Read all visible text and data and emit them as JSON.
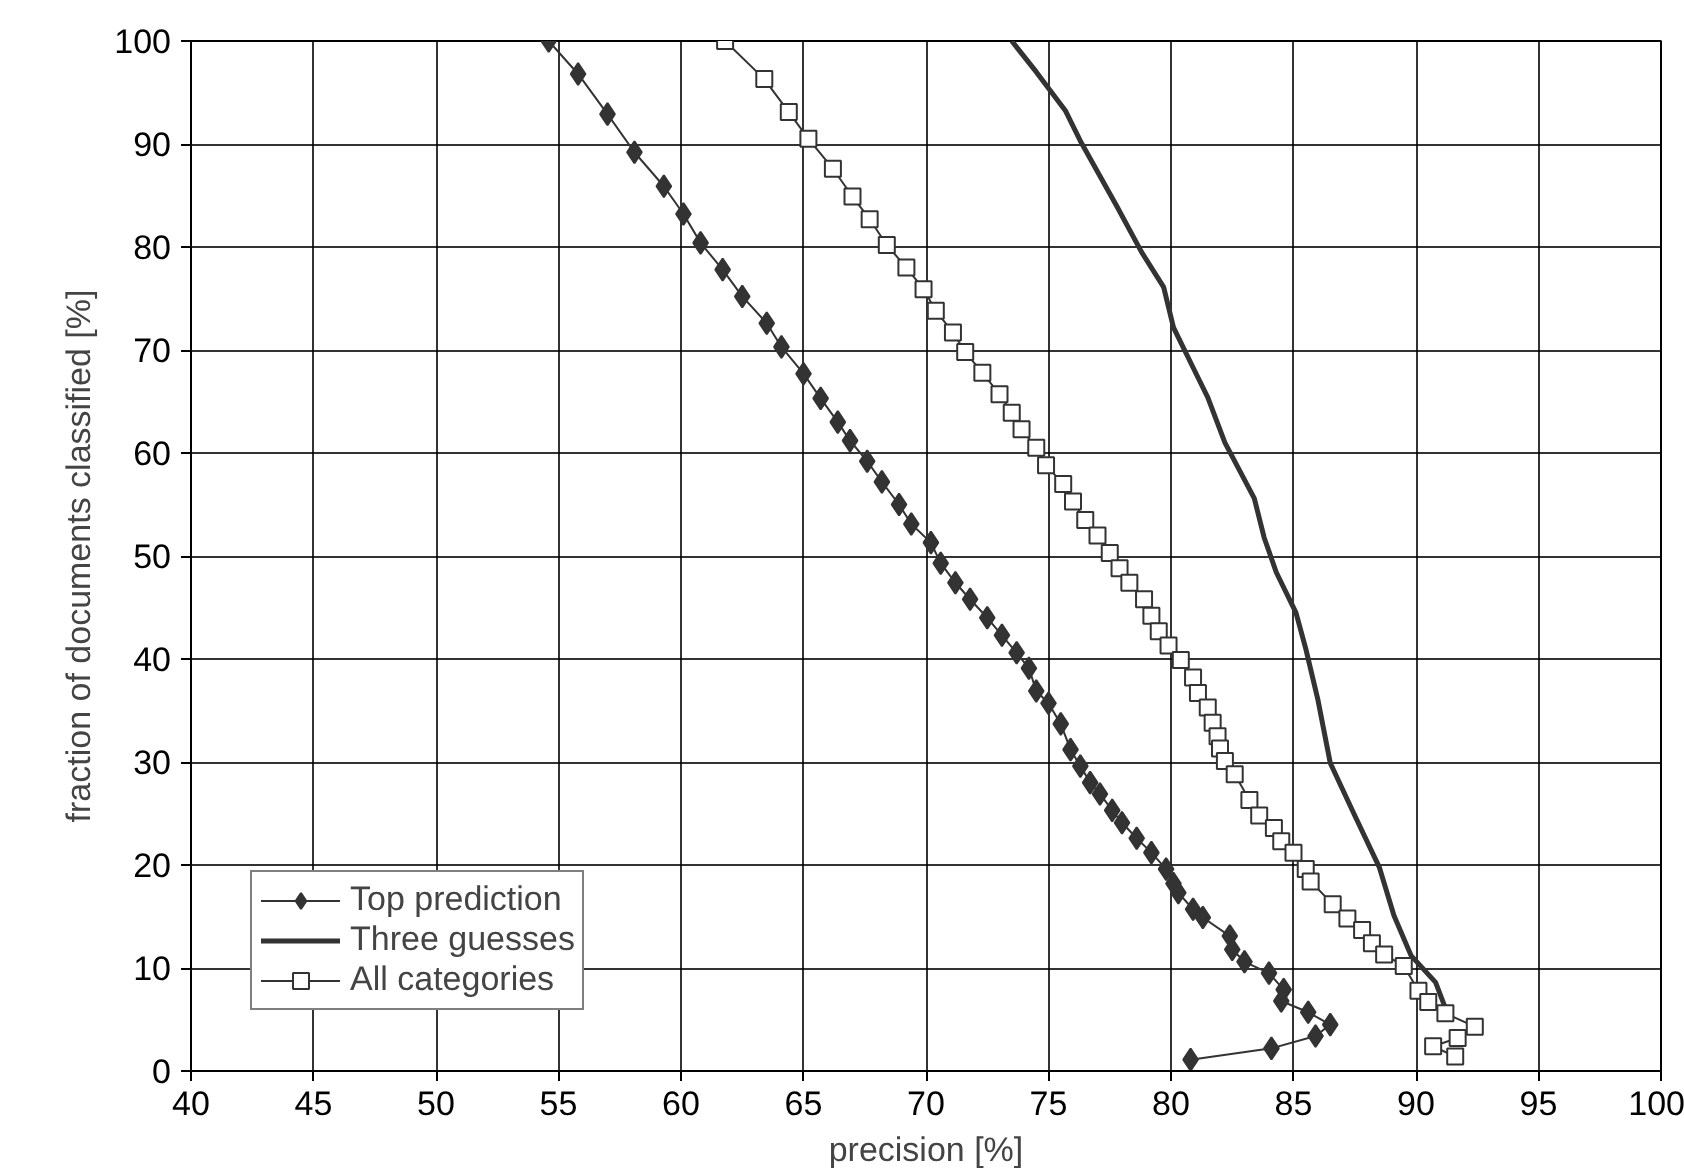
{
  "chart_data": {
    "type": "line",
    "xlabel": "precision [%]",
    "ylabel": "fraction of documents classified [%]",
    "xlim": [
      40,
      100
    ],
    "ylim": [
      0,
      100
    ],
    "xticks": [
      40,
      45,
      50,
      55,
      60,
      65,
      70,
      75,
      80,
      85,
      90,
      95,
      100
    ],
    "yticks": [
      0,
      10,
      20,
      30,
      40,
      50,
      60,
      70,
      80,
      90,
      100
    ],
    "grid": true,
    "legend": "bottom left",
    "series": [
      {
        "name": "Top prediction",
        "color": "#333333",
        "marker": "diamond",
        "x": [
          54.6,
          55.8,
          57.0,
          58.1,
          59.3,
          60.1,
          60.8,
          61.7,
          62.5,
          63.5,
          64.1,
          65.0,
          65.7,
          66.4,
          66.9,
          67.6,
          68.2,
          68.9,
          69.4,
          70.2,
          70.6,
          71.2,
          71.8,
          72.5,
          73.1,
          73.7,
          74.2,
          74.5,
          75.0,
          75.5,
          75.9,
          76.3,
          76.7,
          77.1,
          77.6,
          78.0,
          78.6,
          79.2,
          79.8,
          80.1,
          80.3,
          80.9,
          81.3,
          82.4,
          82.5,
          83.0,
          84.0,
          84.6,
          84.5,
          85.6,
          86.5,
          85.9,
          84.1,
          80.8
        ],
        "values": [
          100,
          96.8,
          92.9,
          89.2,
          85.9,
          83.2,
          80.4,
          77.8,
          75.2,
          72.6,
          70.3,
          67.7,
          65.3,
          63.0,
          61.2,
          59.2,
          57.2,
          55.0,
          53.1,
          51.3,
          49.3,
          47.4,
          45.8,
          44.0,
          42.3,
          40.6,
          39.1,
          36.9,
          35.7,
          33.7,
          31.2,
          29.6,
          28.0,
          26.9,
          25.3,
          24.1,
          22.6,
          21.2,
          19.6,
          18.2,
          17.3,
          15.7,
          14.9,
          13.1,
          11.8,
          10.6,
          9.5,
          7.9,
          6.8,
          5.7,
          4.5,
          3.4,
          2.2,
          1.1
        ]
      },
      {
        "name": "Three guesses",
        "color": "#333333",
        "marker": "none",
        "x": [
          73.5,
          74.5,
          75.7,
          76.3,
          77.8,
          78.8,
          79.7,
          80.1,
          80.9,
          81.5,
          82.2,
          83.4,
          83.8,
          84.3,
          85.1,
          85.5,
          86.0,
          86.5,
          87.5,
          88.5,
          89.1,
          89.8,
          90.8,
          91.2
        ],
        "values": [
          100,
          97,
          93.2,
          90.3,
          83.9,
          79.5,
          76.1,
          72.2,
          68.3,
          65.4,
          61,
          55.6,
          51.8,
          48.4,
          44.5,
          41,
          36.0,
          29.9,
          24.8,
          19.8,
          15.1,
          11.2,
          8.6,
          6.1
        ]
      },
      {
        "name": "All categories",
        "color": "#333333",
        "marker": "square",
        "x": [
          61.8,
          63.4,
          64.4,
          65.2,
          66.2,
          67.0,
          67.7,
          68.4,
          69.2,
          69.9,
          70.4,
          71.1,
          71.6,
          72.3,
          73.0,
          73.5,
          73.9,
          74.5,
          74.9,
          75.6,
          76.0,
          76.5,
          77.0,
          77.5,
          77.9,
          78.3,
          78.9,
          79.2,
          79.5,
          79.9,
          80.4,
          80.9,
          81.1,
          81.5,
          81.7,
          81.9,
          82.0,
          82.2,
          82.6,
          83.2,
          83.6,
          84.2,
          84.5,
          85.0,
          85.5,
          85.7,
          86.6,
          87.2,
          87.8,
          88.2,
          88.7,
          89.5,
          90.1,
          90.5,
          91.2,
          92.4,
          91.7,
          90.7,
          91.6
        ],
        "values": [
          100,
          96.3,
          93.1,
          90.5,
          87.6,
          84.9,
          82.7,
          80.2,
          78.0,
          75.9,
          73.8,
          71.7,
          69.8,
          67.8,
          65.7,
          63.9,
          62.3,
          60.5,
          58.8,
          57.0,
          55.3,
          53.5,
          52.0,
          50.3,
          48.8,
          47.4,
          45.8,
          44.2,
          42.7,
          41.3,
          39.9,
          38.2,
          36.7,
          35.3,
          33.8,
          32.5,
          31.3,
          30.1,
          28.8,
          26.3,
          24.8,
          23.6,
          22.3,
          21.2,
          19.6,
          18.4,
          16.2,
          14.8,
          13.7,
          12.4,
          11.3,
          10.2,
          7.8,
          6.7,
          5.6,
          4.3,
          3.2,
          2.4,
          1.4
        ]
      }
    ]
  }
}
